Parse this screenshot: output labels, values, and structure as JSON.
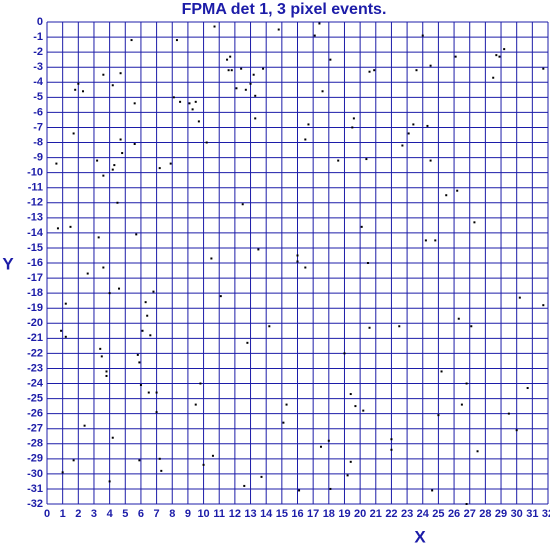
{
  "chart_data": {
    "type": "scatter",
    "title": "FPMA det 1, 3 pixel events.",
    "x_label": "X",
    "y_label": "Y",
    "color": "#000000",
    "grid": true,
    "xlim": [
      0,
      32
    ],
    "ylim": [
      -32,
      0
    ],
    "xticks": [
      0,
      1,
      2,
      3,
      4,
      5,
      6,
      7,
      8,
      9,
      10,
      11,
      12,
      13,
      14,
      15,
      16,
      17,
      18,
      19,
      20,
      21,
      22,
      23,
      24,
      25,
      26,
      27,
      28,
      29,
      30,
      31,
      32
    ],
    "yticks": [
      0,
      -1,
      -2,
      -3,
      -4,
      -5,
      -6,
      -7,
      -8,
      -9,
      -10,
      -11,
      -12,
      -13,
      -14,
      -15,
      -16,
      -17,
      -18,
      -19,
      -20,
      -21,
      -22,
      -23,
      -24,
      -25,
      -26,
      -27,
      -28,
      -29,
      -30,
      -31,
      -32
    ],
    "x": [
      0.6,
      0.7,
      1.2,
      0.9,
      1.2,
      1.0,
      1.5,
      1.7,
      1.8,
      2.0,
      1.7,
      2.3,
      2.4,
      2.6,
      3.2,
      3.3,
      3.4,
      3.5,
      3.6,
      3.6,
      3.6,
      3.8,
      3.8,
      4.0,
      4.0,
      4.2,
      4.2,
      4.3,
      4.2,
      4.5,
      4.6,
      4.7,
      4.7,
      4.8,
      5.4,
      5.6,
      5.6,
      5.7,
      5.8,
      5.9,
      5.9,
      6.0,
      6.1,
      6.3,
      6.4,
      6.5,
      6.6,
      6.8,
      7.0,
      7.0,
      7.2,
      7.2,
      7.3,
      7.9,
      8.1,
      8.3,
      8.5,
      9.1,
      9.3,
      9.5,
      9.5,
      9.7,
      9.8,
      10.0,
      10.2,
      10.5,
      10.6,
      10.7,
      11.1,
      11.5,
      11.7,
      11.6,
      11.8,
      12.1,
      12.4,
      12.5,
      12.6,
      12.7,
      12.8,
      13.0,
      13.2,
      13.3,
      13.3,
      13.5,
      13.7,
      13.8,
      14.2,
      14.8,
      15.1,
      15.3,
      16.0,
      16.0,
      16.1,
      16.5,
      16.5,
      16.7,
      17.1,
      17.4,
      17.5,
      17.6,
      18.0,
      18.1,
      18.1,
      18.6,
      19.0,
      19.2,
      19.4,
      19.4,
      19.5,
      19.6,
      19.7,
      20.2,
      20.1,
      20.4,
      20.5,
      20.6,
      20.6,
      20.9,
      22.0,
      22.0,
      22.5,
      22.7,
      23.1,
      23.4,
      23.6,
      24.0,
      24.2,
      24.3,
      24.5,
      24.5,
      24.6,
      24.8,
      25.0,
      25.2,
      25.5,
      26.1,
      26.2,
      26.3,
      26.5,
      26.8,
      26.8,
      27.1,
      27.3,
      27.5,
      28.5,
      28.7,
      28.9,
      29.2,
      29.5,
      30.0,
      30.2,
      30.7,
      31.7,
      31.7
    ],
    "values": [
      -9.4,
      -13.7,
      -18.7,
      -20.5,
      -20.9,
      -29.9,
      -13.6,
      -29.1,
      -4.5,
      -4.1,
      -7.4,
      -4.6,
      -26.8,
      -16.7,
      -9.2,
      -14.3,
      -21.7,
      -22.2,
      -3.5,
      -10.2,
      -16.3,
      -23.5,
      -23.2,
      -30.5,
      -18.0,
      -4.2,
      -9.8,
      -9.5,
      -27.6,
      -12.0,
      -17.7,
      -3.4,
      -7.8,
      -8.7,
      -1.2,
      -5.4,
      -8.1,
      -14.1,
      -22.1,
      -22.6,
      -29.1,
      -24.1,
      -20.5,
      -18.6,
      -19.5,
      -24.6,
      -20.8,
      -17.9,
      -24.6,
      -25.9,
      -9.7,
      -29.0,
      -29.8,
      -9.4,
      -5.0,
      -1.2,
      -5.3,
      -5.4,
      -5.8,
      -5.3,
      -25.4,
      -6.6,
      -24.0,
      -29.4,
      -8.0,
      -15.7,
      -28.8,
      -0.3,
      -18.2,
      -2.5,
      -2.3,
      -3.2,
      -3.2,
      -4.4,
      -3.1,
      -12.1,
      -30.8,
      -4.5,
      -21.3,
      -4.1,
      -3.5,
      -4.9,
      -6.4,
      -15.1,
      -30.2,
      -3.1,
      -20.2,
      -0.5,
      -26.6,
      -25.4,
      -15.5,
      -15.9,
      -31.1,
      -7.8,
      -16.3,
      -6.8,
      -0.9,
      -0.1,
      -28.2,
      -4.6,
      -27.8,
      -2.5,
      -31.0,
      -9.2,
      -22.0,
      -30.1,
      -24.7,
      -29.2,
      -7.0,
      -6.4,
      -25.5,
      -25.8,
      -13.6,
      -9.1,
      -16.0,
      -3.3,
      -20.3,
      -3.2,
      -27.7,
      -28.4,
      -20.2,
      -8.2,
      -7.4,
      -6.8,
      -3.2,
      -0.9,
      -14.5,
      -6.9,
      -9.2,
      -2.9,
      -31.1,
      -14.5,
      -26.1,
      -23.2,
      -11.5,
      -2.3,
      -11.2,
      -19.7,
      -25.4,
      -24.0,
      -32.0,
      -20.2,
      -13.3,
      -28.5,
      -3.7,
      -2.2,
      -2.3,
      -1.8,
      -26.0,
      -27.1,
      -18.3,
      -24.3,
      -18.8,
      -3.1
    ]
  }
}
